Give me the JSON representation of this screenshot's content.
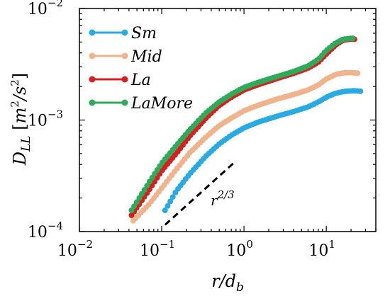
{
  "chart_data": {
    "type": "line",
    "xscale": "log",
    "yscale": "log",
    "xlim": [
      0.01,
      40
    ],
    "ylim": [
      0.0001,
      0.01
    ],
    "x_ticks": [
      {
        "value": 0.01,
        "base": "10",
        "exp": "−2"
      },
      {
        "value": 0.1,
        "base": "10",
        "exp": "−1"
      },
      {
        "value": 1,
        "base": "10",
        "exp": "0"
      },
      {
        "value": 10,
        "base": "10",
        "exp": "1"
      }
    ],
    "y_ticks": [
      {
        "value": 0.0001,
        "base": "10",
        "exp": "−4"
      },
      {
        "value": 0.001,
        "base": "10",
        "exp": "−3"
      },
      {
        "value": 0.01,
        "base": "10",
        "exp": "−2"
      }
    ],
    "xlabel": "r/d_b",
    "ylabel": "D_LL [m²/s²]",
    "legend_position": "top-left",
    "series": [
      {
        "name": "Sm",
        "color": "#29abe2",
        "points": [
          [
            0.11,
            0.000155
          ],
          [
            0.15,
            0.00023
          ],
          [
            0.22,
            0.00033
          ],
          [
            0.35,
            0.00048
          ],
          [
            0.5,
            0.00061
          ],
          [
            0.7,
            0.00073
          ],
          [
            1.0,
            0.00085
          ],
          [
            1.5,
            0.00096
          ],
          [
            2.5,
            0.00108
          ],
          [
            4.0,
            0.00119
          ],
          [
            6.0,
            0.00131
          ],
          [
            8.0,
            0.00145
          ],
          [
            10.0,
            0.0016
          ],
          [
            13.0,
            0.00174
          ],
          [
            17.0,
            0.00181
          ],
          [
            22.0,
            0.00183
          ],
          [
            26.0,
            0.00181
          ]
        ]
      },
      {
        "name": "Mid",
        "color": "#f0b48c",
        "points": [
          [
            0.045,
            0.000125
          ],
          [
            0.07,
            0.000175
          ],
          [
            0.1,
            0.000245
          ],
          [
            0.15,
            0.00036
          ],
          [
            0.22,
            0.00051
          ],
          [
            0.35,
            0.00071
          ],
          [
            0.5,
            0.00089
          ],
          [
            0.7,
            0.00104
          ],
          [
            1.0,
            0.00121
          ],
          [
            1.5,
            0.00136
          ],
          [
            2.5,
            0.00154
          ],
          [
            4.0,
            0.00169
          ],
          [
            6.0,
            0.00186
          ],
          [
            8.0,
            0.00206
          ],
          [
            10.0,
            0.00233
          ],
          [
            13.0,
            0.00256
          ],
          [
            16.0,
            0.00265
          ],
          [
            20.0,
            0.00266
          ],
          [
            24.0,
            0.00263
          ]
        ]
      },
      {
        "name": "La",
        "color": "#d62020",
        "points": [
          [
            0.043,
            0.00014
          ],
          [
            0.07,
            0.000235
          ],
          [
            0.1,
            0.00035
          ],
          [
            0.15,
            0.0005
          ],
          [
            0.22,
            0.00072
          ],
          [
            0.35,
            0.00105
          ],
          [
            0.5,
            0.00135
          ],
          [
            0.7,
            0.0016
          ],
          [
            1.0,
            0.00186
          ],
          [
            1.5,
            0.00208
          ],
          [
            2.5,
            0.00235
          ],
          [
            4.0,
            0.00262
          ],
          [
            6.0,
            0.00292
          ],
          [
            8.0,
            0.0033
          ],
          [
            10.0,
            0.0039
          ],
          [
            13.0,
            0.0047
          ],
          [
            16.0,
            0.0052
          ],
          [
            20.0,
            0.00532
          ],
          [
            22.0,
            0.0053
          ]
        ]
      },
      {
        "name": "LaMore",
        "color": "#2eab5a",
        "points": [
          [
            0.043,
            0.000155
          ],
          [
            0.07,
            0.000275
          ],
          [
            0.1,
            0.00041
          ],
          [
            0.15,
            0.00059
          ],
          [
            0.22,
            0.00082
          ],
          [
            0.35,
            0.00117
          ],
          [
            0.5,
            0.00145
          ],
          [
            0.7,
            0.0017
          ],
          [
            1.0,
            0.00196
          ],
          [
            1.5,
            0.00218
          ],
          [
            2.5,
            0.00245
          ],
          [
            4.0,
            0.00272
          ],
          [
            6.0,
            0.00305
          ],
          [
            8.0,
            0.0035
          ],
          [
            10.0,
            0.0042
          ],
          [
            13.0,
            0.0049
          ],
          [
            16.0,
            0.0053
          ],
          [
            20.0,
            0.0054
          ],
          [
            21.0,
            0.0054
          ]
        ]
      }
    ],
    "reference_line": {
      "x": [
        0.11,
        0.8
      ],
      "y": [
        0.000115,
        0.00043
      ],
      "style": "dashed",
      "color": "#000000",
      "label": "r^{2/3}",
      "label_text": "r",
      "label_sup": "2/3"
    }
  }
}
